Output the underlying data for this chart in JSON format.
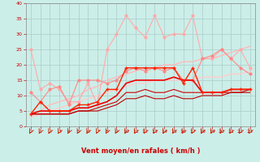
{
  "xlabel": "Vent moyen/en rafales ( km/h )",
  "background_color": "#cceee8",
  "grid_color": "#aacccc",
  "xlim": [
    -0.5,
    23.5
  ],
  "ylim": [
    0,
    40
  ],
  "yticks": [
    0,
    5,
    10,
    15,
    20,
    25,
    30,
    35,
    40
  ],
  "xticks": [
    0,
    1,
    2,
    3,
    4,
    5,
    6,
    7,
    8,
    9,
    10,
    11,
    12,
    13,
    14,
    15,
    16,
    17,
    18,
    19,
    20,
    21,
    22,
    23
  ],
  "series": [
    {
      "x": [
        0,
        1,
        2,
        3,
        4,
        5,
        6,
        7,
        8,
        9,
        10,
        11,
        12,
        13,
        14,
        15,
        16,
        17,
        18,
        19,
        20,
        21,
        22,
        23
      ],
      "y": [
        25,
        12,
        14,
        12,
        8,
        8,
        14,
        7,
        25,
        30,
        36,
        32,
        29,
        36,
        29,
        30,
        30,
        36,
        22,
        22,
        25,
        22,
        25,
        19
      ],
      "color": "#ffaaaa",
      "linewidth": 0.8,
      "marker": "o",
      "markersize": 2.0,
      "zorder": 3
    },
    {
      "x": [
        0,
        1,
        2,
        3,
        4,
        5,
        6,
        7,
        8,
        9,
        10,
        11,
        12,
        13,
        14,
        15,
        16,
        17,
        18,
        19,
        20,
        21,
        22,
        23
      ],
      "y": [
        11,
        8,
        12,
        13,
        7,
        15,
        15,
        15,
        14,
        15,
        18,
        19,
        18,
        19,
        18,
        19,
        15,
        15,
        22,
        23,
        25,
        22,
        19,
        17
      ],
      "color": "#ff8888",
      "linewidth": 0.8,
      "marker": "o",
      "markersize": 2.0,
      "zorder": 4
    },
    {
      "x": [
        0,
        1,
        2,
        3,
        4,
        5,
        6,
        7,
        8,
        9,
        10,
        11,
        12,
        13,
        14,
        15,
        16,
        17,
        18,
        19,
        20,
        21,
        22,
        23
      ],
      "y": [
        4,
        5,
        7,
        8,
        9,
        10,
        12,
        13,
        15,
        16,
        17,
        18,
        19,
        19,
        20,
        20,
        21,
        21,
        22,
        22,
        23,
        24,
        25,
        26
      ],
      "color": "#ffbbbb",
      "linewidth": 1.0,
      "marker": null,
      "markersize": 0,
      "zorder": 2
    },
    {
      "x": [
        0,
        1,
        2,
        3,
        4,
        5,
        6,
        7,
        8,
        9,
        10,
        11,
        12,
        13,
        14,
        15,
        16,
        17,
        18,
        19,
        20,
        21,
        22,
        23
      ],
      "y": [
        3,
        4,
        5,
        6,
        7,
        8,
        9,
        10,
        11,
        12,
        13,
        14,
        14,
        15,
        15,
        15,
        15,
        15,
        16,
        16,
        16,
        17,
        17,
        18
      ],
      "color": "#ffcccc",
      "linewidth": 1.0,
      "marker": null,
      "markersize": 0,
      "zorder": 2
    },
    {
      "x": [
        0,
        1,
        2,
        3,
        4,
        5,
        6,
        7,
        8,
        9,
        10,
        11,
        12,
        13,
        14,
        15,
        16,
        17,
        18,
        19,
        20,
        21,
        22,
        23
      ],
      "y": [
        4,
        8,
        5,
        5,
        5,
        7,
        7,
        8,
        12,
        12,
        19,
        19,
        19,
        19,
        19,
        19,
        14,
        19,
        11,
        11,
        11,
        12,
        12,
        12
      ],
      "color": "#ff2200",
      "linewidth": 1.0,
      "marker": "+",
      "markersize": 3.5,
      "zorder": 6
    },
    {
      "x": [
        0,
        1,
        2,
        3,
        4,
        5,
        6,
        7,
        8,
        9,
        10,
        11,
        12,
        13,
        14,
        15,
        16,
        17,
        18,
        19,
        20,
        21,
        22,
        23
      ],
      "y": [
        4,
        5,
        5,
        5,
        5,
        6,
        6,
        7,
        8,
        10,
        14,
        15,
        15,
        15,
        15,
        16,
        15,
        15,
        11,
        11,
        11,
        12,
        12,
        12
      ],
      "color": "#ee0000",
      "linewidth": 1.2,
      "marker": null,
      "markersize": 0,
      "zorder": 5
    },
    {
      "x": [
        0,
        1,
        2,
        3,
        4,
        5,
        6,
        7,
        8,
        9,
        10,
        11,
        12,
        13,
        14,
        15,
        16,
        17,
        18,
        19,
        20,
        21,
        22,
        23
      ],
      "y": [
        4,
        4,
        4,
        4,
        4,
        5,
        5,
        6,
        7,
        8,
        11,
        11,
        12,
        11,
        11,
        12,
        11,
        11,
        11,
        11,
        11,
        11,
        11,
        12
      ],
      "color": "#cc0000",
      "linewidth": 0.8,
      "marker": null,
      "markersize": 0,
      "zorder": 5
    },
    {
      "x": [
        0,
        1,
        2,
        3,
        4,
        5,
        6,
        7,
        8,
        9,
        10,
        11,
        12,
        13,
        14,
        15,
        16,
        17,
        18,
        19,
        20,
        21,
        22,
        23
      ],
      "y": [
        4,
        4,
        4,
        4,
        4,
        5,
        5,
        5,
        6,
        7,
        9,
        9,
        10,
        9,
        9,
        10,
        9,
        9,
        10,
        10,
        10,
        11,
        11,
        11
      ],
      "color": "#bb0000",
      "linewidth": 0.8,
      "marker": null,
      "markersize": 0,
      "zorder": 5
    }
  ]
}
